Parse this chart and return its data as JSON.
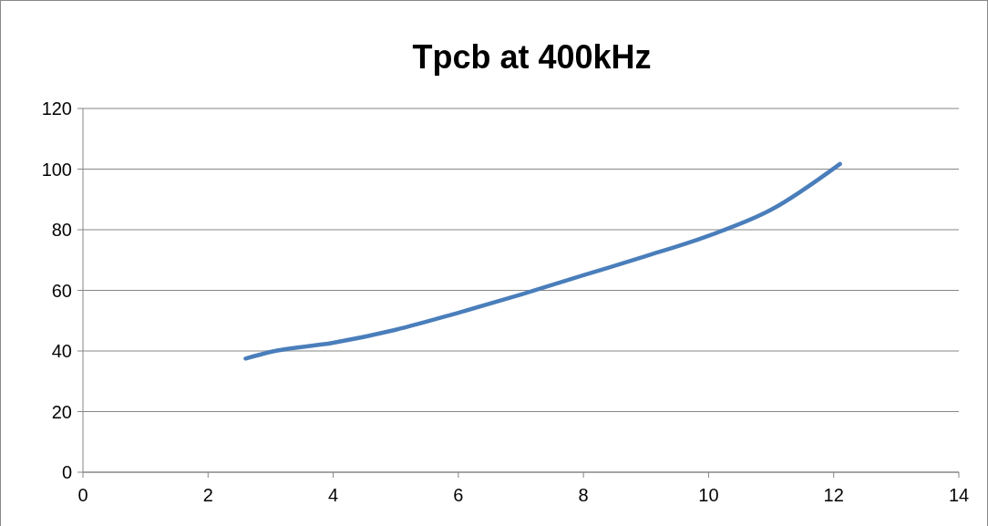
{
  "chart_data": {
    "type": "line",
    "title": "Tpcb at 400kHz",
    "xlim": [
      0,
      14
    ],
    "xticks": [
      0,
      2,
      4,
      6,
      8,
      10,
      12,
      14
    ],
    "ylim": [
      0,
      120
    ],
    "yticks": [
      0,
      20,
      40,
      60,
      80,
      100,
      120
    ],
    "grid": "y",
    "marker": "none",
    "line_style": "solid",
    "series": [
      {
        "color": "#4a7ebb",
        "x": [
          2.6,
          3,
          4,
          5,
          6,
          7,
          8,
          9,
          10,
          11,
          12.1
        ],
        "values": [
          37.5,
          39.7,
          42.7,
          47,
          52.6,
          58.6,
          65,
          71.3,
          78,
          86.6,
          101.7
        ]
      }
    ]
  }
}
